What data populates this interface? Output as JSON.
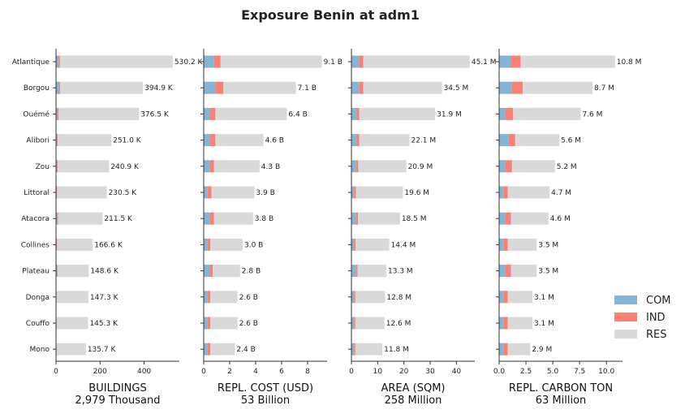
{
  "chart_data": {
    "type": "bar",
    "title": "Exposure Benin at adm1",
    "categories": [
      "Atlantique",
      "Borgou",
      "Ouémé",
      "Alibori",
      "Zou",
      "Littoral",
      "Atacora",
      "Collines",
      "Plateau",
      "Donga",
      "Couffo",
      "Mono"
    ],
    "colors": {
      "COM": "#86b4d4",
      "IND": "#fa8072",
      "RES": "#d9d9d9"
    },
    "legend": {
      "position": "right",
      "entries": [
        "COM",
        "IND",
        "RES"
      ]
    },
    "panels": [
      {
        "xlabel": "BUILDINGS",
        "total_label": "2,979 Thousand",
        "xlim": [
          0,
          560
        ],
        "ticks": [
          0,
          200,
          400
        ],
        "tick_labels": [
          "0",
          "200",
          "400"
        ],
        "labels": [
          "530.2 K",
          "394.9 K",
          "376.5 K",
          "251.0 K",
          "240.9 K",
          "230.5 K",
          "211.5 K",
          "166.6 K",
          "148.6 K",
          "147.3 K",
          "145.3 K",
          "135.7 K"
        ],
        "series": [
          {
            "name": "COM",
            "values": [
              12,
              15,
              6,
              4,
              4,
              2,
              6,
              2,
              6,
              2,
              2,
              2
            ]
          },
          {
            "name": "IND",
            "values": [
              6,
              4,
              5,
              4,
              4,
              3,
              3,
              3,
              2,
              1,
              1,
              1
            ]
          },
          {
            "name": "RES",
            "values": [
              512.2,
              375.9,
              365.5,
              243.0,
              232.9,
              225.5,
              202.5,
              161.6,
              140.6,
              144.3,
              142.3,
              132.7
            ]
          }
        ]
      },
      {
        "xlabel": "REPL. COST (USD)",
        "total_label": "53 Billion",
        "xlim": [
          0,
          9.5
        ],
        "ticks": [
          0,
          2,
          4,
          6,
          8
        ],
        "tick_labels": [
          "0",
          "2",
          "4",
          "6",
          "8"
        ],
        "labels": [
          "9.1 B",
          "7.1 B",
          "6.4 B",
          "4.6 B",
          "4.3 B",
          "3.9 B",
          "3.8 B",
          "3.0 B",
          "2.8 B",
          "2.6 B",
          "2.6 B",
          "2.4 B"
        ],
        "series": [
          {
            "name": "COM",
            "values": [
              0.8,
              0.9,
              0.5,
              0.5,
              0.5,
              0.3,
              0.5,
              0.3,
              0.5,
              0.3,
              0.3,
              0.3
            ]
          },
          {
            "name": "IND",
            "values": [
              0.5,
              0.6,
              0.4,
              0.4,
              0.3,
              0.3,
              0.3,
              0.2,
              0.2,
              0.2,
              0.2,
              0.2
            ]
          },
          {
            "name": "RES",
            "values": [
              7.8,
              5.6,
              5.5,
              3.7,
              3.5,
              3.3,
              3.0,
              2.5,
              2.1,
              2.1,
              2.1,
              1.9
            ]
          }
        ]
      },
      {
        "xlabel": "AREA (SQM)",
        "total_label": "258 Million",
        "xlim": [
          0,
          47
        ],
        "ticks": [
          0,
          10,
          20,
          30,
          40
        ],
        "tick_labels": [
          "0",
          "10",
          "20",
          "30",
          "40"
        ],
        "labels": [
          "45.1 M",
          "34.5 M",
          "31.9 M",
          "22.1 M",
          "20.9 M",
          "19.6 M",
          "18.5 M",
          "14.4 M",
          "13.3 M",
          "12.8 M",
          "12.6 M",
          "11.8 M"
        ],
        "series": [
          {
            "name": "COM",
            "values": [
              3.0,
              3.0,
              2.0,
              2.0,
              1.8,
              1.0,
              1.8,
              1.0,
              1.8,
              1.0,
              1.0,
              1.0
            ]
          },
          {
            "name": "IND",
            "values": [
              1.5,
              1.5,
              1.0,
              1.0,
              0.8,
              0.7,
              0.7,
              0.6,
              0.5,
              0.5,
              0.5,
              0.5
            ]
          },
          {
            "name": "RES",
            "values": [
              40.6,
              30.0,
              28.9,
              19.1,
              18.3,
              17.9,
              16.0,
              12.8,
              11.0,
              11.3,
              11.1,
              10.3
            ]
          }
        ]
      },
      {
        "xlabel": "REPL. CARBON TON",
        "total_label": "63 Million",
        "xlim": [
          0,
          11.5
        ],
        "ticks": [
          0,
          2.5,
          5,
          7.5,
          10
        ],
        "tick_labels": [
          "0.0",
          "2.5",
          "5.0",
          "7.5",
          "10.0"
        ],
        "labels": [
          "10.8 M",
          "8.7 M",
          "7.6 M",
          "5.6 M",
          "5.2 M",
          "4.7 M",
          "4.6 M",
          "3.5 M",
          "3.5 M",
          "3.1 M",
          "3.1 M",
          "2.9 M"
        ],
        "series": [
          {
            "name": "COM",
            "values": [
              1.1,
              1.2,
              0.6,
              0.9,
              0.6,
              0.4,
              0.6,
              0.4,
              0.6,
              0.4,
              0.4,
              0.4
            ]
          },
          {
            "name": "IND",
            "values": [
              0.9,
              1.0,
              0.7,
              0.6,
              0.6,
              0.4,
              0.5,
              0.4,
              0.5,
              0.4,
              0.4,
              0.4
            ]
          },
          {
            "name": "RES",
            "values": [
              8.8,
              6.5,
              6.3,
              4.1,
              4.0,
              3.9,
              3.5,
              2.7,
              2.4,
              2.3,
              2.3,
              2.1
            ]
          }
        ]
      }
    ]
  }
}
